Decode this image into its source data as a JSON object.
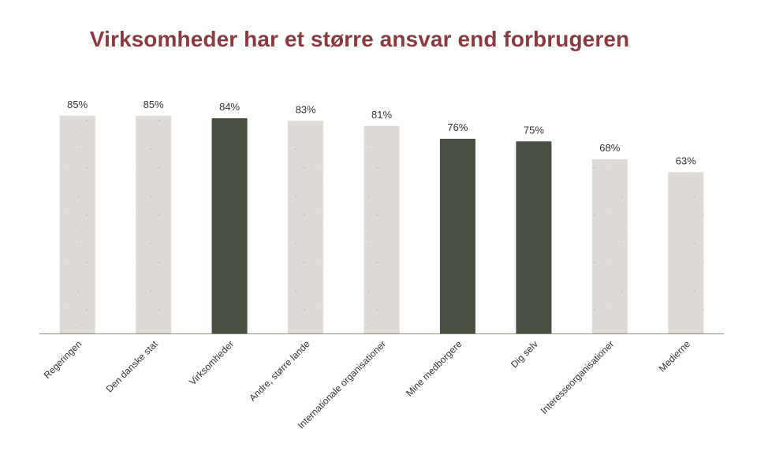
{
  "chart_data": {
    "type": "bar",
    "title": "Virksomheder har et større ansvar end forbrugeren",
    "categories": [
      "Regeringen",
      "Den danske stat",
      "Virksomheder",
      "Andre, større lande",
      "Internationale organisationer",
      "Mine medborgere",
      "Dig selv",
      "Interesseorganisationer",
      "Medierne"
    ],
    "values": [
      85,
      85,
      84,
      83,
      81,
      76,
      75,
      68,
      63
    ],
    "data_labels": [
      "85%",
      "85%",
      "84%",
      "83%",
      "81%",
      "76%",
      "75%",
      "68%",
      "63%"
    ],
    "highlighted": [
      false,
      false,
      true,
      false,
      false,
      true,
      true,
      false,
      false
    ],
    "xlabel": "",
    "ylabel": "",
    "ylim": [
      0,
      100
    ],
    "grid": false,
    "legend": "none",
    "colors": {
      "highlight": "#475040",
      "default": "#dedad5",
      "title": "#8b3a3e",
      "axis": "#8c8c7a"
    }
  }
}
